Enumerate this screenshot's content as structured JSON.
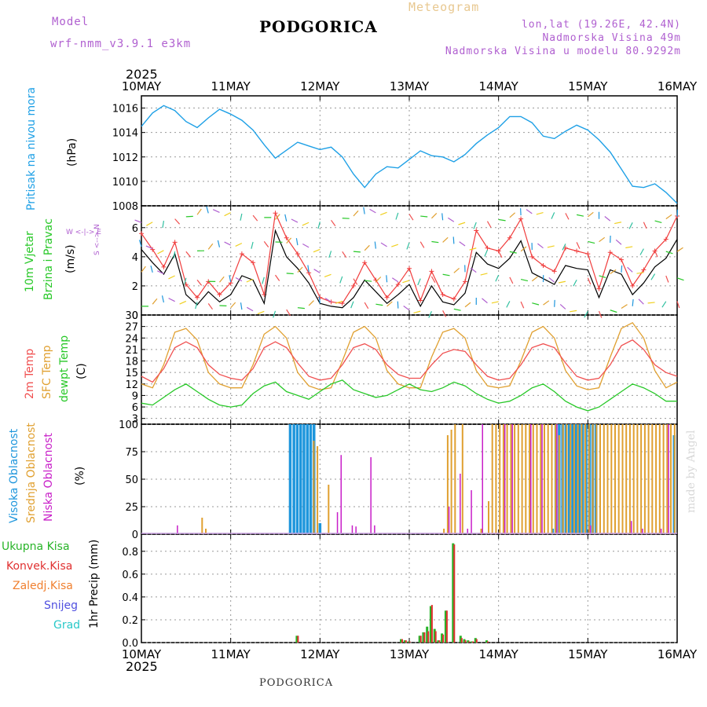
{
  "header": {
    "model_label": "Model",
    "model_name": "wrf-nmm_v3.9.1 e3km",
    "title": "PODGORICA",
    "product": "Meteogram",
    "location": "lon,lat (19.26E, 42.4N)",
    "elevation": "Nadmorska Visina 49m",
    "model_elevation": "Nadmorska Visina u modelu 80.9292m",
    "footer_title": "PODGORICA",
    "credit": "made by Angel"
  },
  "colors": {
    "pressure": "#1ea0e6",
    "wind_black": "#000000",
    "wind_red": "#f03c3c",
    "t2m": "#f05050",
    "sfc": "#e0a030",
    "dewpt": "#28c828",
    "high_cloud": "#1e96dc",
    "mid_cloud": "#e0a030",
    "low_cloud": "#c81ec8",
    "precip_total": "#28b428",
    "precip_conv": "#e03030",
    "grid": "#999999",
    "model": "#b060d0",
    "product": "#e8c890"
  },
  "chart_data": [
    {
      "id": "pressure",
      "type": "line",
      "xlabel_top_year": "2025",
      "xlabel_bottom_year": "2025",
      "x_ticks": [
        "10MAY",
        "11MAY",
        "12MAY",
        "13MAY",
        "14MAY",
        "15MAY",
        "16MAY"
      ],
      "ylabel": "Pritisak na nivou mora",
      "unit": "(hPa)",
      "ylim": [
        1008,
        1017
      ],
      "yticks": [
        1008,
        1010,
        1012,
        1014,
        1016
      ],
      "hours": [
        0,
        3,
        6,
        9,
        12,
        15,
        18,
        21,
        24,
        27,
        30,
        33,
        36,
        42,
        45,
        48,
        51,
        54,
        57,
        60,
        63,
        66,
        69,
        72,
        75,
        78,
        81,
        84,
        87,
        90,
        93,
        96,
        99,
        102,
        105,
        108,
        111,
        114,
        117,
        120,
        123,
        126,
        129,
        132,
        135,
        138,
        141,
        144
      ],
      "values": [
        1014.5,
        1015.6,
        1016.2,
        1015.8,
        1014.9,
        1014.4,
        1015.2,
        1015.9,
        1015.5,
        1015.0,
        1014.2,
        1013.0,
        1011.9,
        1013.2,
        1012.9,
        1012.6,
        1012.8,
        1012.0,
        1010.6,
        1009.5,
        1010.6,
        1011.2,
        1011.1,
        1011.8,
        1012.5,
        1012.1,
        1012.0,
        1011.6,
        1012.2,
        1013.1,
        1013.8,
        1014.4,
        1015.3,
        1015.3,
        1014.8,
        1013.7,
        1013.5,
        1014.1,
        1014.6,
        1014.2,
        1013.4,
        1012.4,
        1011.0,
        1009.6,
        1009.5,
        1009.8,
        1009.1,
        1008.2
      ]
    },
    {
      "id": "wind",
      "type": "line",
      "ylabel_1": "10m Vjetar",
      "ylabel_2": "Brzina i Pravac",
      "unit": "(m/s)",
      "compass_ns": "S <--> N",
      "compass_we": "W <-|-> E",
      "ylim": [
        0,
        7.5
      ],
      "yticks": [
        0,
        2,
        4,
        6
      ],
      "hours": [
        0,
        3,
        6,
        9,
        12,
        15,
        18,
        21,
        24,
        27,
        30,
        33,
        36,
        39,
        42,
        45,
        48,
        51,
        54,
        57,
        60,
        63,
        66,
        69,
        72,
        75,
        78,
        81,
        84,
        87,
        90,
        93,
        96,
        99,
        102,
        105,
        108,
        111,
        114,
        117,
        120,
        123,
        126,
        129,
        132,
        135,
        138,
        141,
        144
      ],
      "speed": [
        4.5,
        3.6,
        2.8,
        4.2,
        1.4,
        0.7,
        1.6,
        0.9,
        1.4,
        2.7,
        2.4,
        0.8,
        5.8,
        4.0,
        3.2,
        2.2,
        0.8,
        0.6,
        0.5,
        1.2,
        2.4,
        1.6,
        0.8,
        1.4,
        2.1,
        0.6,
        2.0,
        0.9,
        0.7,
        1.5,
        4.3,
        3.5,
        3.2,
        3.9,
        5.1,
        2.9,
        2.5,
        2.1,
        3.4,
        3.2,
        3.1,
        1.2,
        3.1,
        2.8,
        1.4,
        2.2,
        3.3,
        3.9,
        5.2
      ],
      "gust": [
        5.6,
        4.5,
        3.3,
        5.0,
        2.1,
        1.2,
        2.3,
        1.4,
        2.2,
        4.2,
        3.6,
        1.4,
        7.0,
        5.3,
        4.2,
        2.9,
        1.2,
        0.9,
        0.8,
        2.0,
        3.6,
        2.4,
        1.2,
        2.1,
        3.2,
        1.0,
        3.0,
        1.4,
        1.1,
        2.3,
        5.8,
        4.6,
        4.4,
        5.3,
        6.6,
        4.0,
        3.4,
        3.0,
        4.6,
        4.4,
        4.2,
        1.8,
        4.3,
        3.8,
        2.0,
        3.1,
        4.4,
        5.2,
        6.8
      ]
    },
    {
      "id": "temperature",
      "type": "line",
      "ylabel_1": "2m Temp",
      "ylabel_2": "SFC Temp",
      "ylabel_3": "dewpt Temp",
      "unit": "(C)",
      "ylim": [
        1.5,
        30
      ],
      "yticks": [
        3,
        6,
        9,
        12,
        15,
        18,
        21,
        24,
        27,
        30
      ],
      "hours": [
        0,
        3,
        6,
        9,
        12,
        15,
        18,
        21,
        24,
        27,
        30,
        33,
        36,
        39,
        42,
        45,
        48,
        51,
        54,
        57,
        60,
        63,
        66,
        69,
        72,
        75,
        78,
        81,
        84,
        87,
        90,
        93,
        96,
        99,
        102,
        105,
        108,
        111,
        114,
        117,
        120,
        123,
        126,
        129,
        132,
        135,
        138,
        141,
        144
      ],
      "t2m": [
        14.0,
        12.5,
        16.0,
        21.5,
        23.0,
        21.5,
        17.0,
        14.5,
        13.5,
        13.0,
        16.0,
        21.5,
        23.0,
        21.5,
        17.5,
        14.0,
        13.0,
        13.5,
        17.0,
        21.5,
        22.5,
        21.0,
        17.0,
        14.5,
        13.5,
        13.5,
        17.0,
        20.0,
        21.0,
        20.5,
        17.0,
        14.0,
        13.0,
        13.5,
        17.0,
        21.5,
        22.5,
        21.5,
        17.5,
        14.0,
        13.0,
        13.5,
        17.0,
        22.0,
        23.5,
        21.0,
        17.0,
        15.0,
        14.0
      ],
      "sfc": [
        12.0,
        11.0,
        17.0,
        25.5,
        26.5,
        23.5,
        15.0,
        12.0,
        11.0,
        11.0,
        17.0,
        25.0,
        27.0,
        24.0,
        15.0,
        11.5,
        10.5,
        11.0,
        18.0,
        25.5,
        27.0,
        24.0,
        15.5,
        12.0,
        11.0,
        11.0,
        19.0,
        25.5,
        26.5,
        24.0,
        15.5,
        11.5,
        11.0,
        11.5,
        18.0,
        25.5,
        27.0,
        24.0,
        15.5,
        11.5,
        10.5,
        11.0,
        19.0,
        26.5,
        28.0,
        24.0,
        15.5,
        11.0,
        12.5
      ],
      "dewpt": [
        7.0,
        6.5,
        8.5,
        10.5,
        12.0,
        10.0,
        8.0,
        6.5,
        6.0,
        6.5,
        9.5,
        11.5,
        12.5,
        10.0,
        9.0,
        8.0,
        10.0,
        12.0,
        13.0,
        10.5,
        9.5,
        8.5,
        9.0,
        10.5,
        12.0,
        10.5,
        10.0,
        11.0,
        12.5,
        11.5,
        9.5,
        8.0,
        7.0,
        7.5,
        9.0,
        11.0,
        12.0,
        10.0,
        7.5,
        6.0,
        5.0,
        6.0,
        8.0,
        10.0,
        12.0,
        11.0,
        9.5,
        7.5,
        7.5
      ]
    },
    {
      "id": "clouds",
      "type": "bar",
      "ylabel_1": "Visoka Oblacnost",
      "ylabel_2": "Srednja Oblacnost",
      "ylabel_3": "Niska Oblacnost",
      "unit": "(%)",
      "ylim": [
        0,
        100
      ],
      "yticks": [
        0,
        25,
        50,
        75,
        100
      ],
      "series": [
        {
          "name": "Visoka Oblacnost",
          "hours": [
            40,
            41,
            41.9,
            42.8,
            43.7,
            44.6,
            45.5,
            46.4,
            48,
            110.5,
            111.4,
            112.3,
            113.2,
            114.1,
            115,
            115.9,
            116.8,
            117.7,
            118.6,
            119.5,
            120.4,
            121.3,
            122.2,
            143.2
          ],
          "values": [
            100,
            100,
            100,
            100,
            100,
            100,
            100,
            100,
            10,
            5,
            100,
            100,
            100,
            100,
            100,
            100,
            100,
            100,
            100,
            100,
            100,
            100,
            100,
            90
          ]
        },
        {
          "name": "Srednja Oblacnost",
          "hours": [
            16,
            17,
            46,
            47,
            50,
            81,
            82,
            83,
            84,
            86,
            91,
            93,
            94,
            95,
            96,
            97,
            98,
            99,
            100,
            101,
            102,
            103,
            104,
            105,
            106,
            107,
            108,
            109,
            110,
            111,
            112,
            113,
            114,
            115,
            116,
            117,
            118,
            119,
            120,
            121,
            122,
            123,
            124,
            125,
            126,
            127,
            128,
            129,
            130,
            131,
            132,
            133,
            134,
            135,
            136,
            137,
            138,
            139,
            140,
            141,
            142,
            143
          ],
          "values": [
            15,
            5,
            85,
            80,
            45,
            5,
            90,
            95,
            100,
            100,
            5,
            30,
            100,
            100,
            100,
            100,
            100,
            100,
            100,
            100,
            100,
            100,
            100,
            100,
            100,
            100,
            100,
            100,
            100,
            100,
            90,
            100,
            100,
            100,
            100,
            100,
            100,
            100,
            100,
            100,
            100,
            100,
            100,
            100,
            100,
            100,
            100,
            100,
            100,
            100,
            100,
            100,
            100,
            100,
            100,
            100,
            100,
            100,
            100,
            100,
            100,
            100
          ],
          "note": "estimated mid cloud coverage; repeated values shown as tall bars"
        },
        {
          "name": "Niska Oblacnost",
          "hours": [
            10,
            53,
            54,
            57,
            58,
            62,
            63,
            83,
            86,
            88,
            89,
            92,
            98,
            100,
            105,
            108,
            112,
            121,
            132,
            135,
            140,
            142
          ],
          "values": [
            8,
            20,
            72,
            8,
            7,
            70,
            8,
            25,
            55,
            5,
            40,
            100,
            100,
            100,
            100,
            100,
            100,
            8,
            12,
            5,
            5,
            100
          ]
        }
      ]
    },
    {
      "id": "precip",
      "type": "bar",
      "ylabel_1": "Ukupna Kisa",
      "ylabel_2": "Konvek.Kisa",
      "ylabel_3": "Zaledj.Kisa",
      "ylabel_4": "Snijeg",
      "ylabel_5": "Grad",
      "unit": "1hr Precip (mm)",
      "ylim": [
        0,
        0.95
      ],
      "yticks": [
        0,
        0.2,
        0.4,
        0.6,
        0.8
      ],
      "hours": [
        42,
        70,
        71,
        72,
        75,
        76,
        77,
        78,
        79,
        80,
        81,
        82,
        84,
        86,
        87,
        88,
        89,
        90,
        93
      ],
      "total": [
        0.06,
        0.03,
        0.02,
        0.01,
        0.06,
        0.09,
        0.14,
        0.32,
        0.12,
        0.02,
        0.08,
        0.28,
        0.87,
        0.06,
        0.03,
        0.02,
        0.01,
        0.04,
        0.02
      ],
      "convective": [
        0.06,
        0.03,
        0.02,
        0.01,
        0.06,
        0.09,
        0.1,
        0.33,
        0.1,
        0.02,
        0.07,
        0.28,
        0.86,
        0.04,
        0.02,
        0.01,
        0.01,
        0.03,
        0.01
      ]
    }
  ]
}
